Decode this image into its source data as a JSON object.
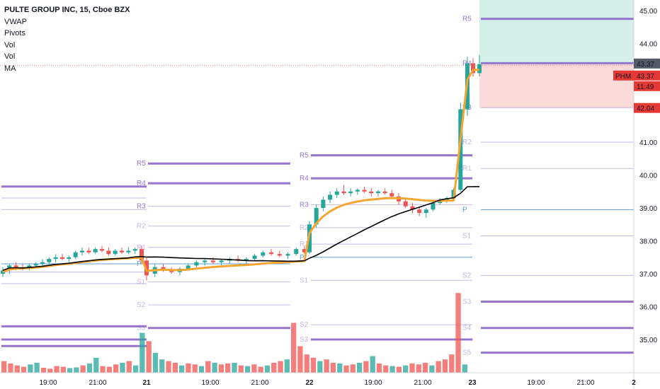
{
  "legend": {
    "title": "PULTE GROUP INC, 15, Cboe BZX",
    "items": [
      "VWAP",
      "Pivots",
      "Vol",
      "Vol",
      "MA"
    ]
  },
  "badges": {
    "last_price": "43.37",
    "symbol": "PHM",
    "symbol_price": "43.37",
    "countdown": "11:49",
    "stop_price": "42.04"
  },
  "colors": {
    "up": "#26a69a",
    "down": "#ef5350",
    "vwap": "#f7a531",
    "ma": "#000000",
    "pivot_major": "#9575cd",
    "pivot_minor": "#b39ddb",
    "pivot_p": "#5b9bd5",
    "target_zone": "#d3efe8",
    "stop_zone": "#fbdada",
    "badge_dark": "#555a66",
    "badge_red": "#e53935"
  },
  "chart_data": {
    "type": "candlestick",
    "title": "PULTE GROUP INC, 15, Cboe BZX",
    "ylim": [
      34.2,
      45.3
    ],
    "y_ticks": [
      "35.00",
      "36.00",
      "37.00",
      "38.00",
      "39.00",
      "40.00",
      "41.00",
      "42.00",
      "43.00",
      "44.00",
      "45.00"
    ],
    "x_ticks": [
      "19:00",
      "21:00",
      "21",
      "19:00",
      "21:00",
      "22",
      "19:00",
      "21:00",
      "23",
      "19:00",
      "21:00",
      "2"
    ],
    "pivot_labels": [
      "R5",
      "R4",
      "R3",
      "R2",
      "R1",
      "P",
      "S1",
      "S2",
      "S3"
    ],
    "pivots": [
      {
        "session": "20",
        "R5": 35.0,
        "R4": 34.8,
        "R3": 39.65,
        "R2": 39.3,
        "R1": 38.95,
        "P": 37.3,
        "S1": 37.05,
        "S2": 36.7,
        "S3": 35.4
      },
      {
        "session": "21",
        "R5": 40.35,
        "R4": 39.75,
        "R3": 39.05,
        "R2": 38.45,
        "R1": 37.8,
        "P": 37.3,
        "S1": 36.75,
        "S2": 36.05,
        "S3": 35.35
      },
      {
        "session": "22",
        "R5": 40.6,
        "R4": 39.9,
        "R3": 39.1,
        "R2": 38.4,
        "R1": 37.9,
        "P": 37.5,
        "S1": 36.8,
        "S2": 35.45,
        "S3": 35.0
      },
      {
        "session": "23",
        "R5": 44.75,
        "R4": 43.4,
        "R3": 42.05,
        "R2": 41.0,
        "R1": 40.2,
        "P": 38.95,
        "S1": 38.15,
        "S2": 36.95,
        "S3": 36.15,
        "S4": 35.35,
        "S5": 34.6
      }
    ],
    "target_zone": [
      43.4,
      45.3
    ],
    "stop_zone": [
      42.04,
      43.37
    ],
    "last_price": 43.37,
    "vwap_last": 43.2,
    "ma_last": 39.65,
    "candles_session_20": [
      [
        37.0,
        37.2,
        36.9,
        37.1
      ],
      [
        37.1,
        37.3,
        37.0,
        37.25
      ],
      [
        37.25,
        37.35,
        37.1,
        37.2
      ],
      [
        37.2,
        37.3,
        37.1,
        37.15
      ],
      [
        37.15,
        37.3,
        37.1,
        37.25
      ],
      [
        37.25,
        37.35,
        37.15,
        37.3
      ],
      [
        37.3,
        37.45,
        37.2,
        37.35
      ],
      [
        37.35,
        37.5,
        37.3,
        37.45
      ],
      [
        37.45,
        37.6,
        37.35,
        37.5
      ],
      [
        37.5,
        37.6,
        37.4,
        37.45
      ],
      [
        37.45,
        37.55,
        37.35,
        37.5
      ],
      [
        37.5,
        37.7,
        37.45,
        37.65
      ],
      [
        37.65,
        37.8,
        37.55,
        37.7
      ],
      [
        37.7,
        37.8,
        37.6,
        37.65
      ],
      [
        37.65,
        37.8,
        37.6,
        37.75
      ],
      [
        37.75,
        37.85,
        37.65,
        37.7
      ],
      [
        37.7,
        37.8,
        37.55,
        37.6
      ],
      [
        37.6,
        37.75,
        37.55,
        37.7
      ],
      [
        37.7,
        37.8,
        37.6,
        37.65
      ],
      [
        37.65,
        37.8,
        37.6,
        37.7
      ],
      [
        37.7,
        37.8,
        37.6,
        37.75
      ],
      [
        37.75,
        37.85,
        37.3,
        37.4
      ]
    ],
    "candles_session_21": [
      [
        37.4,
        37.5,
        36.8,
        36.95
      ],
      [
        37.0,
        37.3,
        36.9,
        37.2
      ],
      [
        37.2,
        37.3,
        37.05,
        37.1
      ],
      [
        37.1,
        37.2,
        37.0,
        37.05
      ],
      [
        37.05,
        37.2,
        36.95,
        37.15
      ],
      [
        37.15,
        37.3,
        37.1,
        37.25
      ],
      [
        37.25,
        37.4,
        37.2,
        37.35
      ],
      [
        37.35,
        37.45,
        37.25,
        37.4
      ],
      [
        37.4,
        37.5,
        37.3,
        37.35
      ],
      [
        37.35,
        37.45,
        37.25,
        37.4
      ],
      [
        37.4,
        37.5,
        37.3,
        37.45
      ],
      [
        37.45,
        37.55,
        37.35,
        37.4
      ],
      [
        37.4,
        37.5,
        37.3,
        37.45
      ],
      [
        37.45,
        37.6,
        37.4,
        37.55
      ],
      [
        37.55,
        37.7,
        37.5,
        37.65
      ],
      [
        37.65,
        37.75,
        37.55,
        37.6
      ],
      [
        37.6,
        37.7,
        37.5,
        37.55
      ],
      [
        37.55,
        37.65,
        37.45,
        37.6
      ],
      [
        37.6,
        37.8,
        37.55,
        37.75
      ],
      [
        37.75,
        37.85,
        37.6,
        37.65
      ]
    ],
    "candles_session_22": [
      [
        37.65,
        38.6,
        37.6,
        38.5
      ],
      [
        38.5,
        39.1,
        38.4,
        39.0
      ],
      [
        39.0,
        39.35,
        38.9,
        39.25
      ],
      [
        39.25,
        39.5,
        39.15,
        39.4
      ],
      [
        39.4,
        39.6,
        39.3,
        39.5
      ],
      [
        39.5,
        39.7,
        39.4,
        39.45
      ],
      [
        39.45,
        39.6,
        39.35,
        39.5
      ],
      [
        39.5,
        39.6,
        39.4,
        39.55
      ],
      [
        39.55,
        39.65,
        39.45,
        39.5
      ],
      [
        39.5,
        39.6,
        39.35,
        39.45
      ],
      [
        39.45,
        39.55,
        39.35,
        39.5
      ],
      [
        39.5,
        39.6,
        39.4,
        39.45
      ],
      [
        39.45,
        39.55,
        39.3,
        39.35
      ],
      [
        39.35,
        39.45,
        39.1,
        39.2
      ],
      [
        39.2,
        39.3,
        39.0,
        39.05
      ],
      [
        39.05,
        39.15,
        38.85,
        38.95
      ],
      [
        38.95,
        39.05,
        38.75,
        38.85
      ],
      [
        38.85,
        39.0,
        38.7,
        38.95
      ],
      [
        38.95,
        39.2,
        38.9,
        39.15
      ],
      [
        39.15,
        39.3,
        39.1,
        39.25
      ],
      [
        39.25,
        39.35,
        39.15,
        39.3
      ],
      [
        39.3,
        39.6,
        39.25,
        39.55
      ],
      [
        39.55,
        42.2,
        39.5,
        42.0
      ],
      [
        42.0,
        43.6,
        41.8,
        43.4
      ]
    ],
    "candles_session_23": [
      [
        43.4,
        43.55,
        43.0,
        43.1
      ],
      [
        43.1,
        43.65,
        43.0,
        43.37
      ]
    ],
    "volume_bars": [
      [
        35,
        0
      ],
      [
        28,
        0
      ],
      [
        22,
        0
      ],
      [
        18,
        0
      ],
      [
        25,
        1
      ],
      [
        30,
        1
      ],
      [
        15,
        0
      ],
      [
        12,
        0
      ],
      [
        20,
        0
      ],
      [
        18,
        0
      ],
      [
        14,
        1
      ],
      [
        16,
        1
      ],
      [
        22,
        0
      ],
      [
        28,
        1
      ],
      [
        45,
        1
      ],
      [
        20,
        0
      ],
      [
        18,
        0
      ],
      [
        25,
        0
      ],
      [
        30,
        1
      ],
      [
        35,
        0
      ],
      [
        22,
        1
      ],
      [
        120,
        1
      ],
      [
        95,
        0
      ],
      [
        60,
        1
      ],
      [
        40,
        1
      ],
      [
        35,
        0
      ],
      [
        30,
        0
      ],
      [
        22,
        1
      ],
      [
        28,
        0
      ],
      [
        25,
        0
      ],
      [
        20,
        1
      ],
      [
        35,
        0
      ],
      [
        30,
        1
      ],
      [
        25,
        0
      ],
      [
        28,
        0
      ],
      [
        30,
        1
      ],
      [
        22,
        0
      ],
      [
        20,
        1
      ],
      [
        25,
        0
      ],
      [
        18,
        0
      ],
      [
        22,
        1
      ],
      [
        30,
        0
      ],
      [
        35,
        0
      ],
      [
        40,
        1
      ],
      [
        150,
        0
      ],
      [
        80,
        0
      ],
      [
        55,
        0
      ],
      [
        45,
        0
      ],
      [
        35,
        1
      ],
      [
        40,
        0
      ],
      [
        30,
        0
      ],
      [
        28,
        1
      ],
      [
        22,
        0
      ],
      [
        25,
        0
      ],
      [
        30,
        1
      ],
      [
        35,
        0
      ],
      [
        50,
        1
      ],
      [
        28,
        0
      ],
      [
        22,
        0
      ],
      [
        20,
        1
      ],
      [
        18,
        0
      ],
      [
        22,
        1
      ],
      [
        28,
        0
      ],
      [
        25,
        0
      ],
      [
        30,
        0
      ],
      [
        22,
        1
      ],
      [
        35,
        0
      ],
      [
        40,
        0
      ],
      [
        55,
        0
      ],
      [
        240,
        0
      ],
      [
        25,
        1
      ]
    ]
  }
}
